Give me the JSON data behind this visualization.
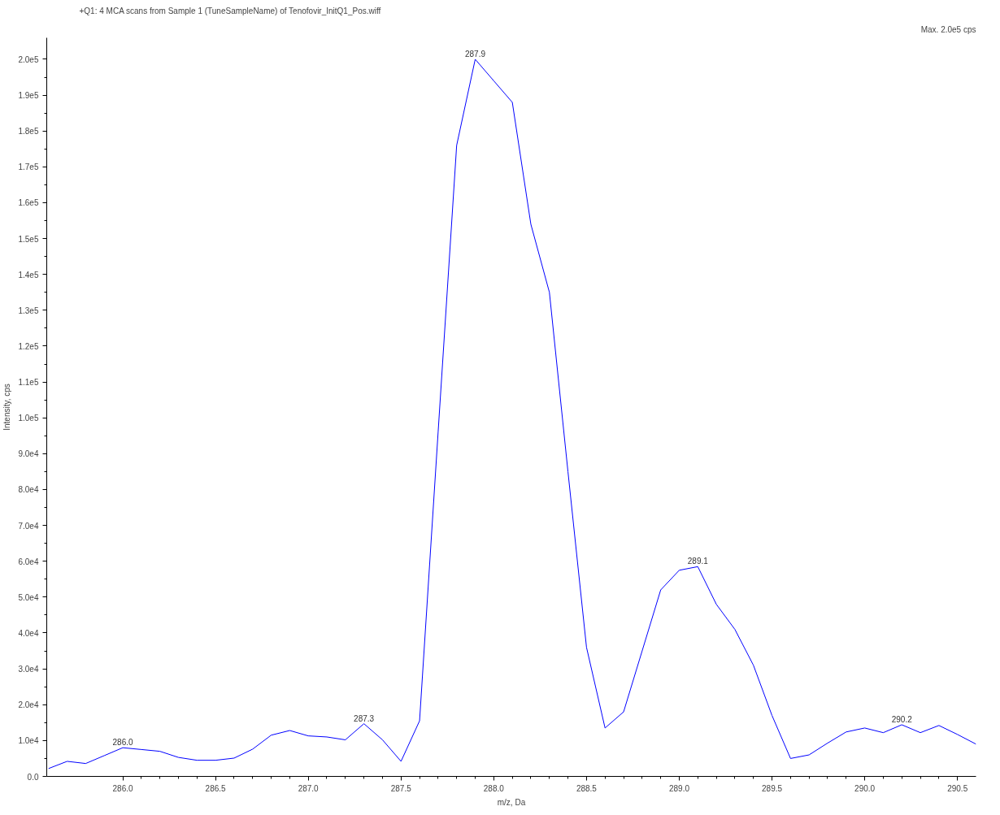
{
  "chart_data": {
    "type": "line",
    "title": "+Q1: 4 MCA scans from Sample 1 (TuneSampleName) of Tenofovir_InitQ1_Pos.wiff",
    "xlabel": "m/z, Da",
    "ylabel": "Intensity, cps",
    "x": [
      285.6,
      285.7,
      285.8,
      285.9,
      286.0,
      286.1,
      286.2,
      286.3,
      286.4,
      286.5,
      286.6,
      286.7,
      286.8,
      286.9,
      287.0,
      287.1,
      287.2,
      287.3,
      287.4,
      287.5,
      287.6,
      287.7,
      287.8,
      287.9,
      288.0,
      288.1,
      288.2,
      288.3,
      288.4,
      288.5,
      288.6,
      288.7,
      288.8,
      288.9,
      289.0,
      289.1,
      289.2,
      289.3,
      289.4,
      289.5,
      289.6,
      289.7,
      289.8,
      289.9,
      290.0,
      290.1,
      290.2,
      290.3,
      290.4,
      290.5,
      290.6
    ],
    "series": [
      {
        "color": "#0000ff",
        "values": [
          2200,
          4200,
          3600,
          5800,
          8000,
          7500,
          7000,
          5300,
          4500,
          4500,
          5100,
          7600,
          11500,
          12800,
          11300,
          11000,
          10200,
          14700,
          10200,
          4200,
          15500,
          96000,
          176000,
          200000,
          194000,
          188000,
          154000,
          135000,
          85000,
          36000,
          13500,
          18000,
          35000,
          52000,
          57500,
          58500,
          48000,
          41000,
          31000,
          17000,
          5000,
          6000,
          9300,
          12400,
          13500,
          12200,
          14400,
          12200,
          14200,
          11700,
          9000
        ]
      }
    ],
    "annotations": [
      {
        "text": "286.0",
        "x": 286.0,
        "y": 8000
      },
      {
        "text": "287.3",
        "x": 287.3,
        "y": 14700
      },
      {
        "text": "287.9",
        "x": 287.9,
        "y": 200000
      },
      {
        "text": "289.1",
        "x": 289.1,
        "y": 58500
      },
      {
        "text": "290.2",
        "x": 290.2,
        "y": 14400
      },
      "Max. 2.0e5 cps"
    ],
    "xlim": [
      285.59,
      290.6
    ],
    "ylim": [
      0,
      206000
    ],
    "xticks": [
      {
        "value": 286.0,
        "label": "286.0"
      },
      {
        "value": 286.5,
        "label": "286.5"
      },
      {
        "value": 287.0,
        "label": "287.0"
      },
      {
        "value": 287.5,
        "label": "287.5"
      },
      {
        "value": 288.0,
        "label": "288.0"
      },
      {
        "value": 288.5,
        "label": "288.5"
      },
      {
        "value": 289.0,
        "label": "289.0"
      },
      {
        "value": 289.5,
        "label": "289.5"
      },
      {
        "value": 290.0,
        "label": "290.0"
      },
      {
        "value": 290.5,
        "label": "290.5"
      }
    ],
    "yticks": [
      {
        "value": 0,
        "label": "0.0"
      },
      {
        "value": 10000,
        "label": "1.0e4"
      },
      {
        "value": 20000,
        "label": "2.0e4"
      },
      {
        "value": 30000,
        "label": "3.0e4"
      },
      {
        "value": 40000,
        "label": "4.0e4"
      },
      {
        "value": 50000,
        "label": "5.0e4"
      },
      {
        "value": 60000,
        "label": "6.0e4"
      },
      {
        "value": 70000,
        "label": "7.0e4"
      },
      {
        "value": 80000,
        "label": "8.0e4"
      },
      {
        "value": 90000,
        "label": "9.0e4"
      },
      {
        "value": 100000,
        "label": "1.0e5"
      },
      {
        "value": 110000,
        "label": "1.1e5"
      },
      {
        "value": 120000,
        "label": "1.2e5"
      },
      {
        "value": 130000,
        "label": "1.3e5"
      },
      {
        "value": 140000,
        "label": "1.4e5"
      },
      {
        "value": 150000,
        "label": "1.5e5"
      },
      {
        "value": 160000,
        "label": "1.6e5"
      },
      {
        "value": 170000,
        "label": "1.7e5"
      },
      {
        "value": 180000,
        "label": "1.8e5"
      },
      {
        "value": 190000,
        "label": "1.9e5"
      },
      {
        "value": 200000,
        "label": "2.0e5"
      }
    ],
    "grid": false,
    "marker": "none",
    "line_style": "solid"
  }
}
